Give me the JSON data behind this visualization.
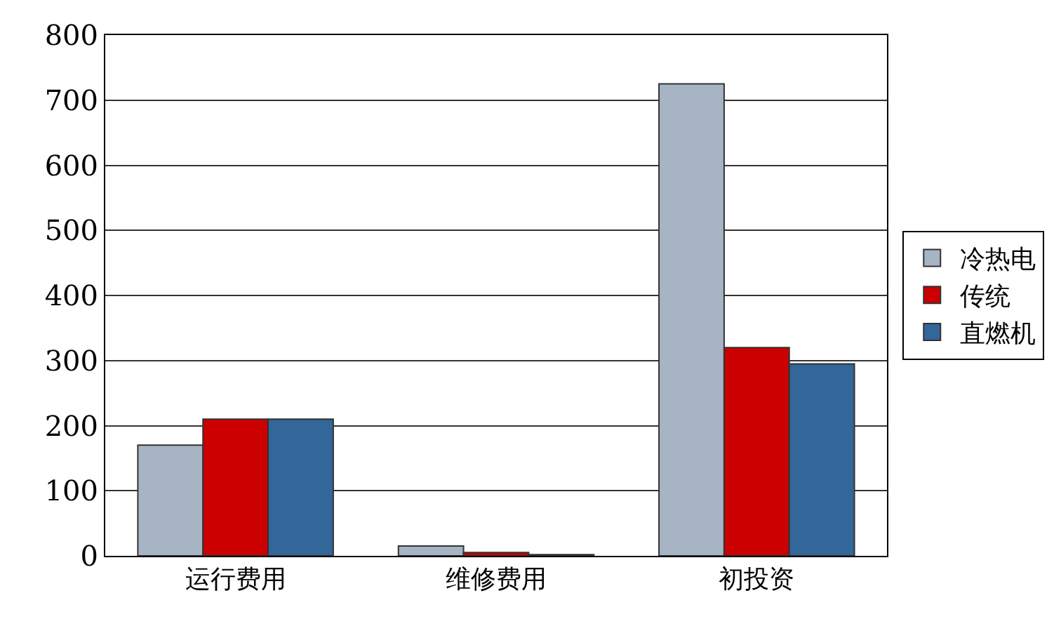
{
  "chart_data": {
    "type": "bar",
    "categories": [
      "运行费用",
      "维修费用",
      "初投资"
    ],
    "series": [
      {
        "name": "冷热电",
        "color": "#a6b4c4",
        "values": [
          170,
          15,
          725
        ]
      },
      {
        "name": "传统",
        "color": "#cc0000",
        "values": [
          210,
          5,
          320
        ]
      },
      {
        "name": "直燃机",
        "color": "#336699",
        "values": [
          210,
          2,
          295
        ]
      }
    ],
    "ylim": [
      0,
      800
    ],
    "yticks": [
      0,
      100,
      200,
      300,
      400,
      500,
      600,
      700,
      800
    ],
    "grid": "y",
    "legend": "right"
  }
}
